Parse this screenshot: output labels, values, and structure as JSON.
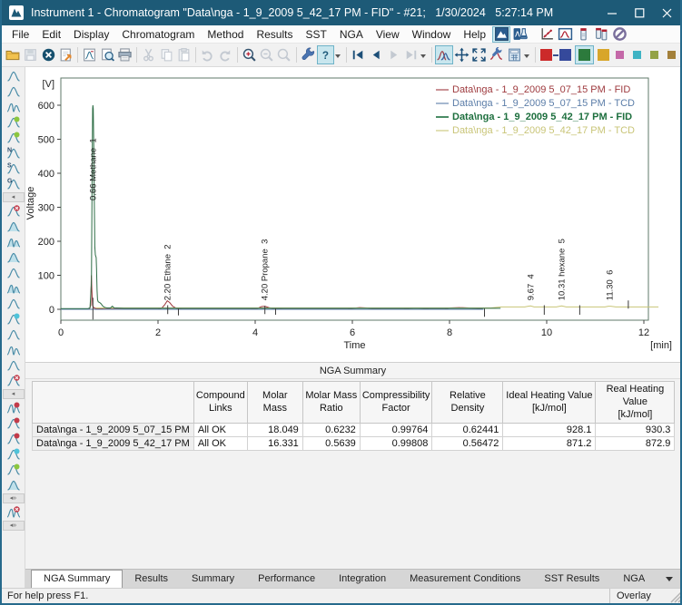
{
  "window": {
    "title": "Instrument 1 - Chromatogram \"Data\\nga - 1_9_2009 5_42_17 PM - FID\" - #21;   1/30/2024   5:27:14 PM"
  },
  "menubar": {
    "items": [
      "File",
      "Edit",
      "Display",
      "Chromatogram",
      "Method",
      "Results",
      "SST",
      "NGA",
      "View",
      "Window",
      "Help"
    ],
    "launch_icons": [
      {
        "name": "instrument-icon",
        "active": true
      },
      {
        "name": "single-analysis-icon"
      },
      {
        "name": "calibration-icon",
        "gap": true
      },
      {
        "name": "chromatogram-window-icon"
      },
      {
        "name": "device-monitoring-icon"
      },
      {
        "name": "sequence-icon"
      },
      {
        "name": "abort-icon"
      }
    ]
  },
  "toolbar": {
    "items": [
      {
        "icon": "open-folder",
        "name": "open-chromatogram-button"
      },
      {
        "icon": "save",
        "name": "save-button",
        "disabled": true
      },
      {
        "icon": "close-circle",
        "name": "close-chromatogram-button"
      },
      {
        "icon": "export-doc",
        "name": "export-button"
      },
      {
        "sep": true
      },
      {
        "icon": "chromatogram-doc",
        "name": "chromatogram-file-button"
      },
      {
        "icon": "preview",
        "name": "print-preview-button"
      },
      {
        "icon": "printer",
        "name": "print-button"
      },
      {
        "sep": true
      },
      {
        "icon": "cut",
        "name": "cut-button",
        "disabled": true
      },
      {
        "icon": "copy",
        "name": "copy-button",
        "disabled": true
      },
      {
        "icon": "paste",
        "name": "paste-button",
        "disabled": true
      },
      {
        "sep": true
      },
      {
        "icon": "undo",
        "name": "undo-button",
        "disabled": true
      },
      {
        "icon": "redo",
        "name": "redo-button",
        "disabled": true
      },
      {
        "sep": true
      },
      {
        "icon": "zoom-in",
        "name": "zoom-in-button"
      },
      {
        "icon": "zoom-out",
        "name": "zoom-out-button",
        "disabled": true
      },
      {
        "icon": "zoom-reset",
        "name": "zoom-reset-button",
        "disabled": true
      },
      {
        "sep": true
      },
      {
        "icon": "wrench",
        "name": "properties-button"
      },
      {
        "icon": "help",
        "name": "help-button",
        "active": true
      },
      {
        "dropdown": true,
        "name": "help-dropdown"
      },
      {
        "sep": true
      },
      {
        "icon": "nav-first",
        "name": "first-chromatogram-button"
      },
      {
        "icon": "nav-prev",
        "name": "previous-chromatogram-button"
      },
      {
        "icon": "nav-next",
        "name": "next-chromatogram-button",
        "disabled": true
      },
      {
        "icon": "nav-last",
        "name": "last-chromatogram-button",
        "disabled": true
      },
      {
        "dropdown": true,
        "name": "navigation-dropdown"
      },
      {
        "sep": true
      },
      {
        "icon": "overlay",
        "name": "overlay-mode-button",
        "active": true
      },
      {
        "icon": "pan",
        "name": "pan-button"
      },
      {
        "icon": "fit",
        "name": "fit-to-window-button"
      },
      {
        "icon": "graph-wrench",
        "name": "graph-properties-button"
      },
      {
        "icon": "calc",
        "name": "result-table-button"
      },
      {
        "dropdown": true,
        "name": "table-dropdown"
      },
      {
        "sep": true
      },
      {
        "swatch": "#cc2a2a",
        "size": "lg",
        "name": "trace-color-red-swatch"
      },
      {
        "conn": true
      },
      {
        "swatch": "#35499b",
        "size": "lg",
        "name": "trace-color-blue-swatch"
      },
      {
        "swatch": "#2c7a3c",
        "size": "lg",
        "boxed": true,
        "name": "trace-color-green-swatch"
      },
      {
        "swatch": "#d8a62a",
        "size": "lg",
        "name": "trace-color-gold-swatch"
      },
      {
        "swatch": "#c468a8",
        "size": "sm",
        "name": "trace-color-magenta-swatch"
      },
      {
        "swatch": "#3fb3c4",
        "size": "sm",
        "name": "trace-color-cyan-swatch"
      },
      {
        "swatch": "#93a246",
        "size": "sm",
        "name": "trace-color-olive-swatch"
      },
      {
        "swatch": "#a3803a",
        "size": "sm",
        "name": "trace-color-brown-swatch"
      }
    ]
  },
  "sidebar": {
    "tools": [
      {
        "name": "peak-baseline-tool-icon"
      },
      {
        "name": "peak-start-end-tool-icon"
      },
      {
        "name": "peaks-together-tool-icon",
        "double": true
      },
      {
        "name": "valley-to-valley-tool-icon",
        "accent": "green"
      },
      {
        "name": "allow-crossing-tool-icon",
        "accent": "green"
      },
      {
        "name": "negative-peak-tool-icon",
        "letter": "N"
      },
      {
        "name": "solvent-peak-tool-icon",
        "letter": "S"
      },
      {
        "name": "group-peaks-tool-icon",
        "letter": "G"
      },
      {
        "sep": "left"
      },
      {
        "name": "reject-peak-tool-icon",
        "accent": "redx"
      },
      {
        "name": "fill-peak-tool-icon",
        "fill": true
      },
      {
        "name": "fill-peaks-tool-icon",
        "fill": true,
        "double": true
      },
      {
        "name": "tailing-peak-tool-icon",
        "fill": true
      },
      {
        "name": "fronting-peak-tool-icon"
      },
      {
        "name": "split-peak-tool-icon",
        "fill": true,
        "double": true
      },
      {
        "name": "baseline-wave-tool-icon"
      },
      {
        "name": "contract-peaks-tool-icon",
        "accent": "cyan"
      },
      {
        "name": "smooth-curve-tool-icon"
      },
      {
        "name": "double-wave-tool-icon",
        "double": true
      },
      {
        "name": "valley-curve-tool-icon"
      },
      {
        "name": "reject-curve-tool-icon",
        "accent": "redx"
      },
      {
        "sep": "left"
      },
      {
        "name": "compare-chromatograms-tool-icon",
        "accent": "red",
        "double": true
      },
      {
        "name": "align-peaks-tool-icon",
        "accent": "red"
      },
      {
        "name": "cut-curve-tool-icon",
        "accent": "red"
      },
      {
        "name": "shift-curve-tool-icon",
        "accent": "cyan"
      },
      {
        "name": "accept-curve-tool-icon",
        "accent": "green"
      },
      {
        "name": "filled-peak-tool-icon",
        "fill": true
      },
      {
        "sep": "double"
      },
      {
        "name": "overlay-compare-tool-icon",
        "accent": "redx",
        "double": true
      },
      {
        "sep": "double"
      }
    ]
  },
  "chart": {
    "type": "line",
    "y_unit": "[V]",
    "y_label": "Voltage",
    "x_label": "Time",
    "x_unit": "[min]",
    "x_ticks": [
      0,
      2,
      4,
      6,
      8,
      10,
      12
    ],
    "y_ticks": [
      0,
      100,
      200,
      300,
      400,
      500,
      600
    ],
    "xlim": [
      0,
      12.3
    ],
    "ylim": [
      -32,
      640
    ],
    "legend": [
      {
        "label": "Data\\nga - 1_9_2009 5_07_15 PM - FID",
        "color": "#9e3a3e",
        "bold": false
      },
      {
        "label": "Data\\nga - 1_9_2009 5_07_15 PM - TCD",
        "color": "#5b7da8",
        "bold": false
      },
      {
        "label": "Data\\nga - 1_9_2009 5_42_17 PM - FID",
        "color": "#1d6f3e",
        "bold": true
      },
      {
        "label": "Data\\nga - 1_9_2009 5_42_17 PM - TCD",
        "color": "#c9c578",
        "bold": false
      }
    ],
    "series": [
      {
        "name": "fid-5_07_15",
        "color": "#9e3a3e",
        "points": [
          [
            0,
            1
          ],
          [
            0.59,
            1
          ],
          [
            0.615,
            12
          ],
          [
            0.628,
            100
          ],
          [
            0.64,
            55
          ],
          [
            0.652,
            12
          ],
          [
            0.68,
            4
          ],
          [
            0.75,
            2
          ],
          [
            0.9,
            1
          ],
          [
            2.0,
            1
          ],
          [
            2.08,
            4
          ],
          [
            2.14,
            14
          ],
          [
            2.19,
            25
          ],
          [
            2.24,
            20
          ],
          [
            2.3,
            9
          ],
          [
            2.38,
            3
          ],
          [
            2.5,
            1
          ],
          [
            3.9,
            1
          ],
          [
            4.05,
            3
          ],
          [
            4.13,
            8
          ],
          [
            4.2,
            9
          ],
          [
            4.28,
            5
          ],
          [
            4.38,
            2
          ],
          [
            4.6,
            1
          ],
          [
            5.9,
            1
          ],
          [
            6.0,
            3
          ],
          [
            6.15,
            5
          ],
          [
            6.3,
            4
          ],
          [
            6.45,
            2
          ],
          [
            6.6,
            1
          ],
          [
            7.05,
            1
          ],
          [
            7.18,
            3
          ],
          [
            7.3,
            4
          ],
          [
            7.45,
            3
          ],
          [
            7.58,
            1
          ],
          [
            7.9,
            1
          ],
          [
            8.0,
            4
          ],
          [
            8.2,
            5
          ],
          [
            8.4,
            4
          ],
          [
            8.55,
            3
          ],
          [
            8.68,
            1
          ]
        ]
      },
      {
        "name": "tcd-5_07_15",
        "color": "#5b7da8",
        "points": [
          [
            0,
            0
          ],
          [
            8.7,
            0
          ]
        ]
      },
      {
        "name": "tcd-5_42_17",
        "color": "#c9c578",
        "points": [
          [
            0.72,
            4
          ],
          [
            1.5,
            4
          ],
          [
            8.85,
            4
          ],
          [
            9.05,
            7
          ],
          [
            9.55,
            7
          ],
          [
            9.62,
            9
          ],
          [
            9.67,
            10
          ],
          [
            9.74,
            7
          ],
          [
            10.2,
            7
          ],
          [
            10.27,
            9
          ],
          [
            10.31,
            10
          ],
          [
            10.4,
            7
          ],
          [
            11.2,
            7
          ],
          [
            11.27,
            9
          ],
          [
            11.32,
            9
          ],
          [
            11.42,
            7
          ],
          [
            12.3,
            7
          ]
        ]
      },
      {
        "name": "fid-5_42_17",
        "color": "#2e6e46",
        "points": [
          [
            0,
            2
          ],
          [
            0.55,
            2
          ],
          [
            0.6,
            4
          ],
          [
            0.63,
            80
          ],
          [
            0.645,
            420
          ],
          [
            0.655,
            590
          ],
          [
            0.66,
            600
          ],
          [
            0.668,
            590
          ],
          [
            0.678,
            470
          ],
          [
            0.688,
            330
          ],
          [
            0.695,
            240
          ],
          [
            0.7,
            185
          ],
          [
            0.71,
            160
          ],
          [
            0.728,
            152
          ],
          [
            0.735,
            120
          ],
          [
            0.745,
            55
          ],
          [
            0.755,
            28
          ],
          [
            0.77,
            22
          ],
          [
            0.8,
            20
          ],
          [
            0.83,
            16
          ],
          [
            0.86,
            10
          ],
          [
            0.9,
            6
          ],
          [
            0.95,
            4
          ],
          [
            1.02,
            4
          ],
          [
            1.06,
            9
          ],
          [
            1.1,
            4
          ],
          [
            1.3,
            3
          ],
          [
            9.05,
            3
          ]
        ]
      }
    ],
    "peak_labels": [
      {
        "x": 0.66,
        "v": 320,
        "text": "0.66 Methane  1"
      },
      {
        "x": 2.2,
        "v": 26,
        "text": "2.20 Ethane  2"
      },
      {
        "x": 4.2,
        "v": 26,
        "text": "4.20 Propane  3"
      },
      {
        "x": 9.67,
        "v": 26,
        "text": "9.67  4"
      },
      {
        "x": 10.31,
        "v": 26,
        "text": "10.31 hexane  5"
      },
      {
        "x": 11.3,
        "v": 26,
        "text": "11.30  6"
      }
    ],
    "peak_markers": [
      {
        "x": 0.66,
        "v1": -30,
        "v2": 34
      },
      {
        "x": 2.2,
        "v1": -14,
        "v2": 12
      },
      {
        "x": 2.42,
        "v1": -18,
        "v2": 2
      },
      {
        "x": 4.2,
        "v1": -14,
        "v2": 10
      },
      {
        "x": 4.42,
        "v1": -16,
        "v2": 2
      },
      {
        "x": 8.72,
        "v1": -22,
        "v2": 2
      },
      {
        "x": 9.95,
        "v1": -16,
        "v2": 12
      },
      {
        "x": 10.68,
        "v1": -16,
        "v2": 12
      },
      {
        "x": 11.68,
        "v1": 2,
        "v2": 26
      }
    ]
  },
  "summary": {
    "title": "NGA Summary",
    "columns": [
      "",
      "Compound\nLinks",
      "Molar Mass",
      "Molar Mass\nRatio",
      "Compressibility\nFactor",
      "Relative Density",
      "Ideal Heating Value\n[kJ/mol]",
      "Real Heating Value\n[kJ/mol]"
    ],
    "rows": [
      {
        "label": "Data\\nga - 1_9_2009 5_07_15 PM",
        "cells": [
          "All OK",
          "18.049",
          "0.6232",
          "0.99764",
          "0.62441",
          "928.1",
          "930.3"
        ]
      },
      {
        "label": "Data\\nga - 1_9_2009 5_42_17 PM",
        "cells": [
          "All OK",
          "16.331",
          "0.5639",
          "0.99808",
          "0.56472",
          "871.2",
          "872.9"
        ]
      }
    ]
  },
  "tabs": {
    "active": 0,
    "items": [
      "NGA Summary",
      "Results",
      "Summary",
      "Performance",
      "Integration",
      "Measurement Conditions",
      "SST Results",
      "NGA"
    ]
  },
  "statusbar": {
    "help": "For help press F1.",
    "mode": "Overlay"
  }
}
